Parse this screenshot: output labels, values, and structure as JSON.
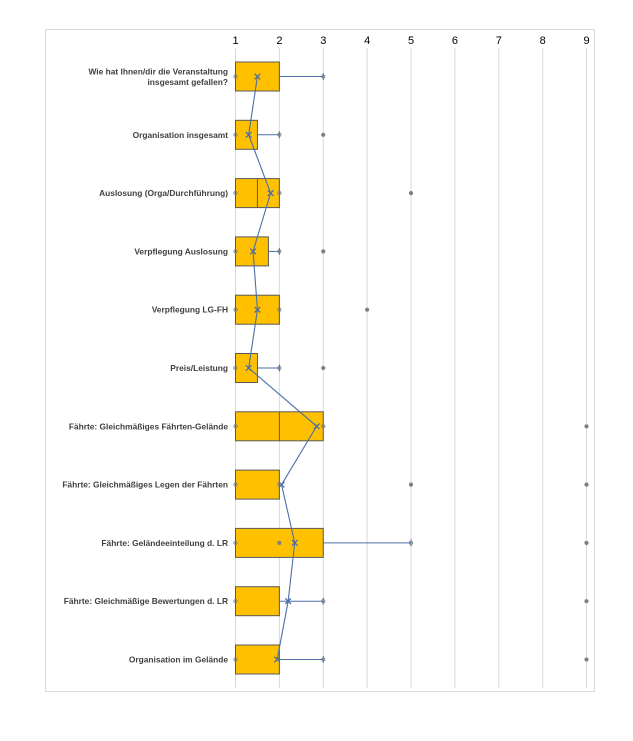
{
  "chart_data": {
    "type": "boxplot",
    "title": "",
    "xlabel": "",
    "ylabel": "",
    "orientation": "horizontal",
    "x_ticks": [
      1,
      2,
      3,
      4,
      5,
      6,
      7,
      8,
      9
    ],
    "xlim": [
      1,
      9
    ],
    "x_ticks_position": "top",
    "grid": true,
    "colors": {
      "box_fill": "#FFC000",
      "box_stroke": "#595959",
      "whisker": "#4a6ea8",
      "mean_line": "#4a6ea8",
      "outlier": "#7f7f7f",
      "grid": "#d9d9d9"
    },
    "categories": [
      {
        "label_lines": [
          "Wie hat Ihnen/dir die Veranstaltung",
          "insgesamt gefallen?"
        ],
        "min": 1,
        "q1": 1,
        "median": 2,
        "q3": 2,
        "max": 3,
        "mean": 1.5,
        "outliers": []
      },
      {
        "label_lines": [
          "Organisation insgesamt"
        ],
        "min": 1,
        "q1": 1,
        "median": 1.5,
        "q3": 1.5,
        "max": 2,
        "mean": 1.3,
        "outliers": [
          3
        ]
      },
      {
        "label_lines": [
          "Auslosung (Orga/Durchführung)"
        ],
        "min": 1,
        "q1": 1,
        "median": 1.5,
        "q3": 2,
        "max": 2,
        "mean": 1.8,
        "outliers": [
          5
        ]
      },
      {
        "label_lines": [
          "Verpflegung Auslosung"
        ],
        "min": 1,
        "q1": 1,
        "median": 1.75,
        "q3": 1.75,
        "max": 2,
        "mean": 1.4,
        "outliers": [
          3
        ]
      },
      {
        "label_lines": [
          "Verpflegung LG-FH"
        ],
        "min": 1,
        "q1": 1,
        "median": 2,
        "q3": 2,
        "max": 2,
        "mean": 1.5,
        "outliers": [
          4
        ]
      },
      {
        "label_lines": [
          "Preis/Leistung"
        ],
        "min": 1,
        "q1": 1,
        "median": 1.5,
        "q3": 1.5,
        "max": 2,
        "mean": 1.3,
        "outliers": [
          3
        ]
      },
      {
        "label_lines": [
          "Fährte: Gleichmäßiges Fährten-Gelände"
        ],
        "min": 1,
        "q1": 1,
        "median": 2,
        "q3": 3,
        "max": 3,
        "mean": 2.85,
        "outliers": [
          9
        ]
      },
      {
        "label_lines": [
          "Fährte: Gleichmäßiges Legen der Fährten"
        ],
        "min": 1,
        "q1": 1,
        "median": 2,
        "q3": 2,
        "max": 2,
        "mean": 2.05,
        "outliers": [
          5,
          9
        ]
      },
      {
        "label_lines": [
          "Fährte: Geländeeinteilung d. LR"
        ],
        "min": 1,
        "q1": 1,
        "median": 3,
        "q3": 3,
        "max": 5,
        "mean": 2.35,
        "outliers": [
          2,
          9
        ]
      },
      {
        "label_lines": [
          "Fährte: Gleichmäßige Bewertungen d. LR"
        ],
        "min": 1,
        "q1": 1,
        "median": 2,
        "q3": 2,
        "max": 3,
        "mean": 2.2,
        "outliers": [
          9
        ]
      },
      {
        "label_lines": [
          "Organisation im Gelände"
        ],
        "min": 1,
        "q1": 1,
        "median": 2,
        "q3": 2,
        "max": 3,
        "mean": 1.95,
        "outliers": [
          9
        ]
      }
    ]
  }
}
